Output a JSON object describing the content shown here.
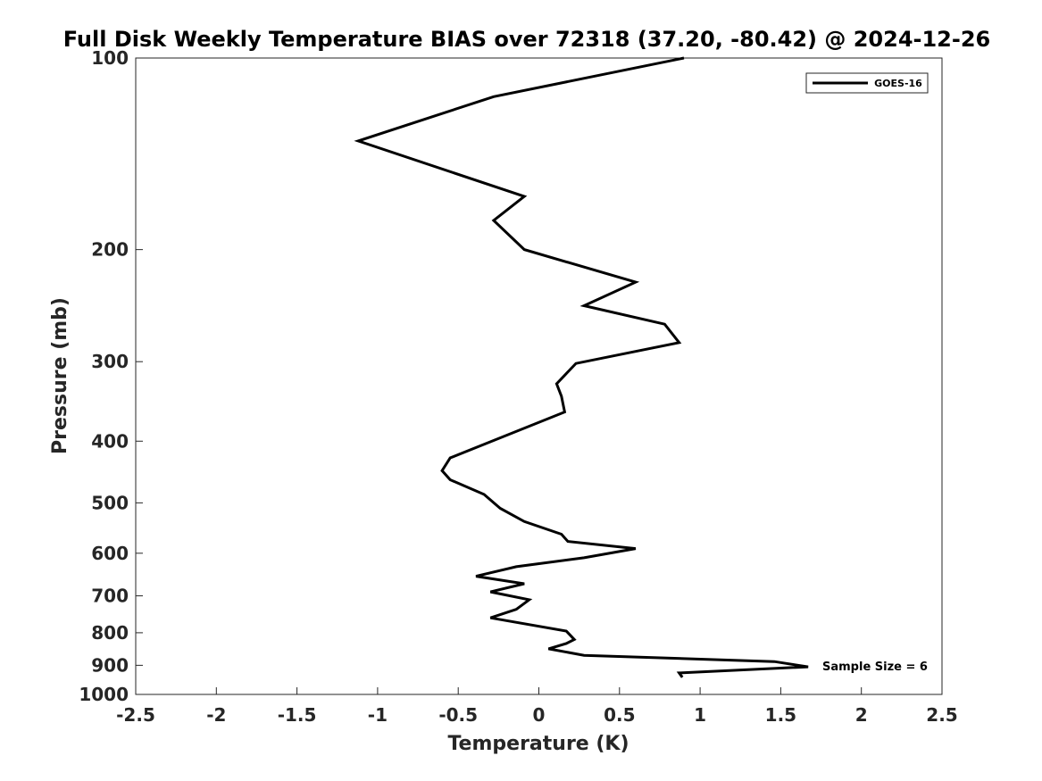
{
  "chart_data": {
    "type": "line",
    "title": "Full Disk Weekly Temperature BIAS over 72318 (37.20, -80.42) @ 2024-12-26",
    "xlabel": "Temperature (K)",
    "ylabel": "Pressure (mb)",
    "xlim": [
      -2.5,
      2.5
    ],
    "ylim": [
      100,
      1000
    ],
    "y_scale": "log",
    "y_reversed": true,
    "grid": false,
    "legend_position": "top-right",
    "x_ticks": [
      -2.5,
      -2,
      -1.5,
      -1,
      -0.5,
      0,
      0.5,
      1,
      1.5,
      2,
      2.5
    ],
    "x_tick_labels": [
      "-2.5",
      "-2",
      "-1.5",
      "-1",
      "-0.5",
      "0",
      "0.5",
      "1",
      "1.5",
      "2",
      "2.5"
    ],
    "y_ticks": [
      100,
      200,
      300,
      400,
      500,
      600,
      700,
      800,
      900,
      1000
    ],
    "y_tick_labels": [
      "100",
      "200",
      "300",
      "400",
      "500",
      "600",
      "700",
      "800",
      "900",
      "1000"
    ],
    "annotation": "Sample Size = 6",
    "series": [
      {
        "name": "GOES-16",
        "color": "#000000",
        "points": [
          [
            0.9,
            100
          ],
          [
            -0.28,
            115
          ],
          [
            -1.12,
            135
          ],
          [
            -0.09,
            165
          ],
          [
            -0.28,
            180
          ],
          [
            -0.09,
            200
          ],
          [
            0.6,
            225
          ],
          [
            0.28,
            245
          ],
          [
            0.78,
            262
          ],
          [
            0.87,
            280
          ],
          [
            0.23,
            302
          ],
          [
            0.11,
            325
          ],
          [
            0.14,
            340
          ],
          [
            0.16,
            360
          ],
          [
            -0.55,
            425
          ],
          [
            -0.6,
            445
          ],
          [
            -0.55,
            460
          ],
          [
            -0.34,
            485
          ],
          [
            -0.24,
            510
          ],
          [
            -0.09,
            535
          ],
          [
            0.14,
            560
          ],
          [
            0.18,
            575
          ],
          [
            0.6,
            590
          ],
          [
            0.28,
            610
          ],
          [
            -0.14,
            630
          ],
          [
            -0.39,
            652
          ],
          [
            -0.09,
            670
          ],
          [
            -0.3,
            690
          ],
          [
            -0.06,
            710
          ],
          [
            -0.14,
            735
          ],
          [
            -0.3,
            758
          ],
          [
            0.17,
            795
          ],
          [
            0.22,
            820
          ],
          [
            0.17,
            832
          ],
          [
            0.06,
            848
          ],
          [
            0.28,
            868
          ],
          [
            1.46,
            888
          ],
          [
            1.67,
            905
          ],
          [
            0.87,
            925
          ],
          [
            0.89,
            940
          ]
        ]
      }
    ]
  }
}
